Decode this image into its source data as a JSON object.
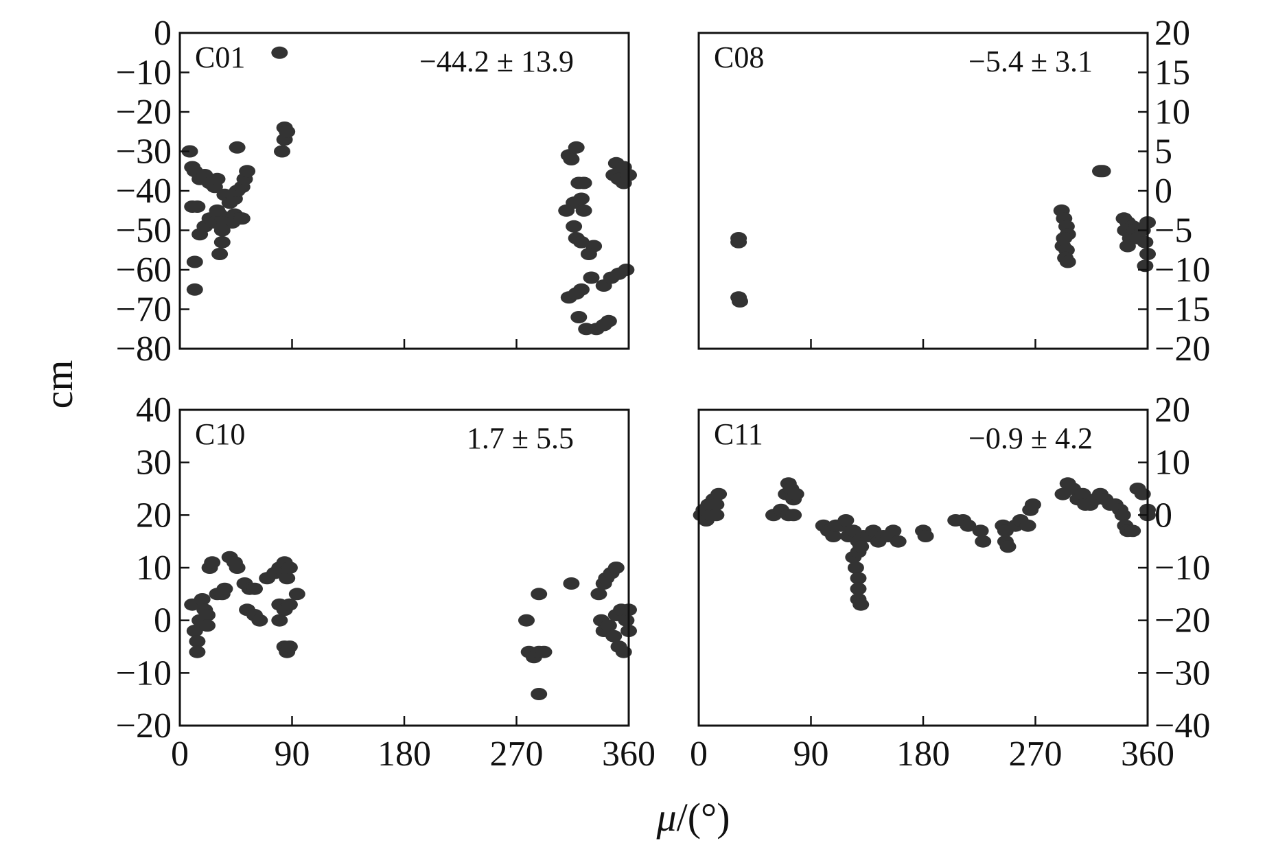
{
  "figure": {
    "ylabel": "cm",
    "xlabel_symbol": "μ",
    "xlabel_unit": "/(°)"
  },
  "colors": {
    "marker": "#333333",
    "frame": "#111111",
    "background": "#ffffff"
  },
  "chart_data": [
    {
      "type": "scatter",
      "label": "C01",
      "annotation": "−44.2 ± 13.9",
      "xlim": [
        0,
        360
      ],
      "ylim": [
        -80,
        0
      ],
      "xticks": [
        0,
        90,
        180,
        270,
        360
      ],
      "xtick_labels": [],
      "yticks": [
        0,
        -10,
        -20,
        -30,
        -40,
        -50,
        -60,
        -70,
        -80
      ],
      "ytick_labels": [
        "0",
        "−10",
        "−20",
        "−30",
        "−40",
        "−50",
        "−60",
        "−70",
        "−80"
      ],
      "y_axis_side": "left",
      "points": [
        [
          8,
          -30
        ],
        [
          10,
          -34
        ],
        [
          12,
          -35
        ],
        [
          10,
          -44
        ],
        [
          14,
          -44
        ],
        [
          16,
          -37
        ],
        [
          20,
          -36
        ],
        [
          24,
          -38
        ],
        [
          28,
          -39
        ],
        [
          30,
          -37
        ],
        [
          16,
          -51
        ],
        [
          20,
          -49
        ],
        [
          24,
          -47
        ],
        [
          28,
          -48
        ],
        [
          32,
          -46
        ],
        [
          36,
          -48
        ],
        [
          30,
          -45
        ],
        [
          36,
          -41
        ],
        [
          40,
          -43
        ],
        [
          44,
          -42
        ],
        [
          46,
          -40
        ],
        [
          44,
          -46
        ],
        [
          48,
          -47
        ],
        [
          42,
          -48
        ],
        [
          50,
          -47
        ],
        [
          46,
          -29
        ],
        [
          50,
          -39
        ],
        [
          52,
          -37
        ],
        [
          54,
          -35
        ],
        [
          34,
          -53
        ],
        [
          32,
          -56
        ],
        [
          34,
          -50
        ],
        [
          12,
          -58
        ],
        [
          12,
          -65
        ],
        [
          80,
          -5
        ],
        [
          84,
          -24
        ],
        [
          84,
          -27
        ],
        [
          82,
          -30
        ],
        [
          86,
          -25
        ],
        [
          312,
          -31
        ],
        [
          314,
          -32
        ],
        [
          318,
          -29
        ],
        [
          320,
          -38
        ],
        [
          324,
          -38
        ],
        [
          316,
          -43
        ],
        [
          310,
          -45
        ],
        [
          322,
          -42
        ],
        [
          324,
          -45
        ],
        [
          316,
          -49
        ],
        [
          318,
          -52
        ],
        [
          322,
          -53
        ],
        [
          332,
          -54
        ],
        [
          328,
          -56
        ],
        [
          312,
          -67
        ],
        [
          318,
          -66
        ],
        [
          322,
          -65
        ],
        [
          330,
          -62
        ],
        [
          340,
          -64
        ],
        [
          346,
          -62
        ],
        [
          352,
          -61
        ],
        [
          358,
          -60
        ],
        [
          320,
          -72
        ],
        [
          326,
          -75
        ],
        [
          334,
          -75
        ],
        [
          340,
          -74
        ],
        [
          344,
          -73
        ],
        [
          348,
          -36
        ],
        [
          352,
          -37
        ],
        [
          356,
          -38
        ],
        [
          350,
          -33
        ],
        [
          356,
          -34
        ],
        [
          360,
          -36
        ]
      ]
    },
    {
      "type": "scatter",
      "label": "C08",
      "annotation": "−5.4 ± 3.1",
      "xlim": [
        0,
        360
      ],
      "ylim": [
        -20,
        20
      ],
      "xticks": [
        0,
        90,
        180,
        270,
        360
      ],
      "xtick_labels": [],
      "yticks": [
        20,
        15,
        10,
        5,
        0,
        -5,
        -10,
        -15,
        -20
      ],
      "ytick_labels": [
        "20",
        "15",
        "10",
        "5",
        "0",
        "−5",
        "−10",
        "−15",
        "−20"
      ],
      "y_axis_side": "right",
      "points": [
        [
          32,
          -6
        ],
        [
          32,
          -6.5
        ],
        [
          32,
          -13.5
        ],
        [
          33,
          -14
        ],
        [
          291,
          -2.5
        ],
        [
          293,
          -3.5
        ],
        [
          295,
          -4.5
        ],
        [
          296,
          -5.5
        ],
        [
          293,
          -6
        ],
        [
          292,
          -7
        ],
        [
          295,
          -7.5
        ],
        [
          294,
          -8.5
        ],
        [
          296,
          -9
        ],
        [
          322,
          2.5
        ],
        [
          324,
          2.5
        ],
        [
          341,
          -3.5
        ],
        [
          344,
          -4
        ],
        [
          348,
          -4.5
        ],
        [
          342,
          -5
        ],
        [
          346,
          -6
        ],
        [
          344,
          -7
        ],
        [
          350,
          -5
        ],
        [
          352,
          -6
        ],
        [
          356,
          -5
        ],
        [
          358,
          -6.5
        ],
        [
          360,
          -4
        ],
        [
          360,
          -8
        ],
        [
          358,
          -9.5
        ]
      ]
    },
    {
      "type": "scatter",
      "label": "C10",
      "annotation": "1.7 ± 5.5",
      "xlim": [
        0,
        360
      ],
      "ylim": [
        -20,
        40
      ],
      "xticks": [
        0,
        90,
        180,
        270,
        360
      ],
      "xtick_labels": [
        "0",
        "90",
        "180",
        "270",
        "360"
      ],
      "yticks": [
        40,
        30,
        20,
        10,
        0,
        -10,
        -20
      ],
      "ytick_labels": [
        "40",
        "30",
        "20",
        "10",
        "0",
        "−10",
        "−20"
      ],
      "y_axis_side": "left",
      "points": [
        [
          10,
          3
        ],
        [
          12,
          -2
        ],
        [
          14,
          -4
        ],
        [
          14,
          -6
        ],
        [
          16,
          0
        ],
        [
          18,
          4
        ],
        [
          20,
          2
        ],
        [
          22,
          1
        ],
        [
          22,
          -1
        ],
        [
          24,
          10
        ],
        [
          26,
          11
        ],
        [
          30,
          5
        ],
        [
          34,
          5
        ],
        [
          36,
          6
        ],
        [
          40,
          12
        ],
        [
          44,
          11
        ],
        [
          46,
          10
        ],
        [
          52,
          7
        ],
        [
          56,
          6
        ],
        [
          60,
          6
        ],
        [
          54,
          2
        ],
        [
          60,
          1
        ],
        [
          64,
          0
        ],
        [
          70,
          8
        ],
        [
          76,
          9
        ],
        [
          80,
          10
        ],
        [
          84,
          11
        ],
        [
          86,
          8
        ],
        [
          88,
          10
        ],
        [
          80,
          3
        ],
        [
          84,
          2
        ],
        [
          88,
          3
        ],
        [
          80,
          0
        ],
        [
          84,
          -5
        ],
        [
          86,
          -6
        ],
        [
          88,
          -5
        ],
        [
          94,
          5
        ],
        [
          278,
          0
        ],
        [
          280,
          -6
        ],
        [
          284,
          -7
        ],
        [
          288,
          -6
        ],
        [
          292,
          -6
        ],
        [
          288,
          5
        ],
        [
          288,
          -14
        ],
        [
          314,
          7
        ],
        [
          336,
          5
        ],
        [
          340,
          7
        ],
        [
          342,
          8
        ],
        [
          346,
          9
        ],
        [
          350,
          10
        ],
        [
          338,
          0
        ],
        [
          340,
          -2
        ],
        [
          344,
          -1
        ],
        [
          348,
          -3
        ],
        [
          352,
          -5
        ],
        [
          356,
          -6
        ],
        [
          350,
          1
        ],
        [
          354,
          2
        ],
        [
          358,
          0
        ],
        [
          360,
          2
        ],
        [
          360,
          -2
        ]
      ]
    },
    {
      "type": "scatter",
      "label": "C11",
      "annotation": "−0.9 ± 4.2",
      "xlim": [
        0,
        360
      ],
      "ylim": [
        -40,
        20
      ],
      "xticks": [
        0,
        90,
        180,
        270,
        360
      ],
      "xtick_labels": [
        "0",
        "90",
        "180",
        "270",
        "360"
      ],
      "yticks": [
        20,
        10,
        0,
        -10,
        -20,
        -30,
        -40
      ],
      "ytick_labels": [
        "20",
        "10",
        "0",
        "−10",
        "−20",
        "−30",
        "−40"
      ],
      "y_axis_side": "right",
      "points": [
        [
          2,
          0
        ],
        [
          4,
          1
        ],
        [
          6,
          -1
        ],
        [
          8,
          2
        ],
        [
          10,
          0
        ],
        [
          12,
          3
        ],
        [
          14,
          2
        ],
        [
          16,
          4
        ],
        [
          14,
          0
        ],
        [
          60,
          0
        ],
        [
          66,
          1
        ],
        [
          70,
          4
        ],
        [
          72,
          6
        ],
        [
          74,
          5
        ],
        [
          76,
          3
        ],
        [
          78,
          4
        ],
        [
          72,
          0
        ],
        [
          76,
          0
        ],
        [
          100,
          -2
        ],
        [
          104,
          -3
        ],
        [
          108,
          -4
        ],
        [
          110,
          -2
        ],
        [
          114,
          -2
        ],
        [
          118,
          -1
        ],
        [
          120,
          -4
        ],
        [
          124,
          -3
        ],
        [
          128,
          -5
        ],
        [
          132,
          -4
        ],
        [
          136,
          -4
        ],
        [
          140,
          -3
        ],
        [
          144,
          -5
        ],
        [
          148,
          -4
        ],
        [
          152,
          -4
        ],
        [
          156,
          -3
        ],
        [
          160,
          -5
        ],
        [
          124,
          -8
        ],
        [
          126,
          -10
        ],
        [
          128,
          -12
        ],
        [
          128,
          -14
        ],
        [
          128,
          -16
        ],
        [
          130,
          -17
        ],
        [
          128,
          -7
        ],
        [
          130,
          -6
        ],
        [
          180,
          -3
        ],
        [
          182,
          -4
        ],
        [
          206,
          -1
        ],
        [
          212,
          -1
        ],
        [
          216,
          -2
        ],
        [
          226,
          -3
        ],
        [
          228,
          -5
        ],
        [
          244,
          -2
        ],
        [
          246,
          -3
        ],
        [
          246,
          -5
        ],
        [
          248,
          -6
        ],
        [
          254,
          -2
        ],
        [
          258,
          -1
        ],
        [
          264,
          -2
        ],
        [
          266,
          1
        ],
        [
          268,
          2
        ],
        [
          292,
          4
        ],
        [
          296,
          6
        ],
        [
          300,
          5
        ],
        [
          304,
          3
        ],
        [
          308,
          4
        ],
        [
          310,
          2
        ],
        [
          314,
          2
        ],
        [
          318,
          3
        ],
        [
          322,
          4
        ],
        [
          326,
          3
        ],
        [
          330,
          2
        ],
        [
          334,
          2
        ],
        [
          338,
          1
        ],
        [
          340,
          0
        ],
        [
          342,
          -2
        ],
        [
          344,
          -3
        ],
        [
          348,
          -3
        ],
        [
          352,
          5
        ],
        [
          356,
          4
        ],
        [
          360,
          1
        ],
        [
          360,
          0
        ]
      ]
    }
  ]
}
